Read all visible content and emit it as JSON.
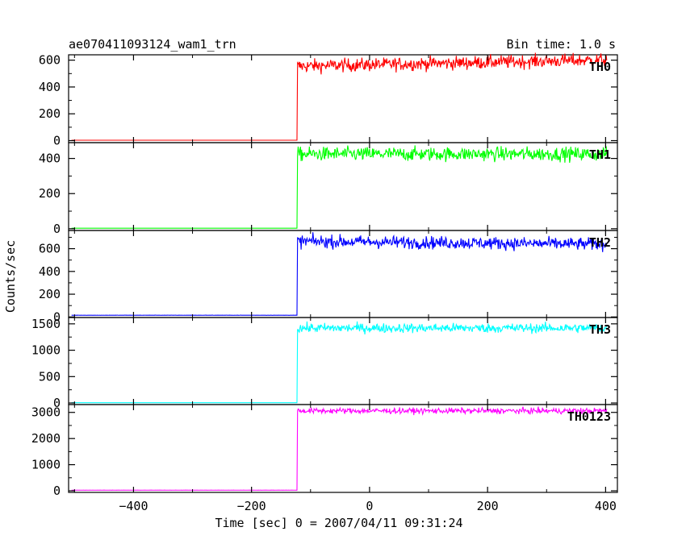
{
  "chart_data": {
    "type": "line",
    "title": "ae070411093124_wam1_trn",
    "subtitle": "Bin time: 1.0 s",
    "xlabel": "Time [sec] 0 = 2007/04/11 09:31:24",
    "ylabel": "Counts/sec",
    "xlim": [
      -510,
      420
    ],
    "x_ticks": [
      -400,
      -200,
      0,
      200,
      400
    ],
    "x_tick_labels": [
      "−400",
      "−200",
      "0",
      "200",
      "400"
    ],
    "grid": false,
    "panels": [
      {
        "name": "TH0",
        "color": "#ff0000",
        "ylim": [
          -15,
          640
        ],
        "y_ticks": [
          0,
          200,
          400,
          600
        ],
        "y_tick_labels": [
          "0",
          "200",
          "400",
          "600"
        ],
        "pre_level": 3,
        "post_level": 555,
        "noise": 25,
        "trend": 0.09,
        "onset": -122,
        "x_start": -505,
        "x_end": 402
      },
      {
        "name": "TH1",
        "color": "#00ff00",
        "ylim": [
          -10,
          490
        ],
        "y_ticks": [
          0,
          200,
          400
        ],
        "y_tick_labels": [
          "0",
          "200",
          "400"
        ],
        "pre_level": 3,
        "post_level": 425,
        "noise": 20,
        "trend": 0.0,
        "onset": -122,
        "x_start": -505,
        "x_end": 402
      },
      {
        "name": "TH2",
        "color": "#0000ff",
        "ylim": [
          -5,
          760
        ],
        "y_ticks": [
          0,
          200,
          400,
          600
        ],
        "y_tick_labels": [
          "0",
          "200",
          "400",
          "600"
        ],
        "pre_level": 15,
        "post_level": 665,
        "noise": 28,
        "trend": -0.05,
        "onset": -122,
        "x_start": -505,
        "x_end": 402
      },
      {
        "name": "TH3",
        "color": "#00ffff",
        "ylim": [
          -30,
          1620
        ],
        "y_ticks": [
          0,
          500,
          1000,
          1500
        ],
        "y_tick_labels": [
          "0",
          "500",
          "1000",
          "1500"
        ],
        "pre_level": 5,
        "post_level": 1420,
        "noise": 45,
        "trend": 0.0,
        "onset": -122,
        "x_start": -505,
        "x_end": 402
      },
      {
        "name": "TH0123",
        "color": "#ff00ff",
        "ylim": [
          -60,
          3300
        ],
        "y_ticks": [
          0,
          1000,
          2000,
          3000
        ],
        "y_tick_labels": [
          "0",
          "1000",
          "2000",
          "3000"
        ],
        "pre_level": 25,
        "post_level": 3060,
        "noise": 55,
        "trend": 0.0,
        "onset": -122,
        "x_start": -505,
        "x_end": 402
      }
    ]
  }
}
